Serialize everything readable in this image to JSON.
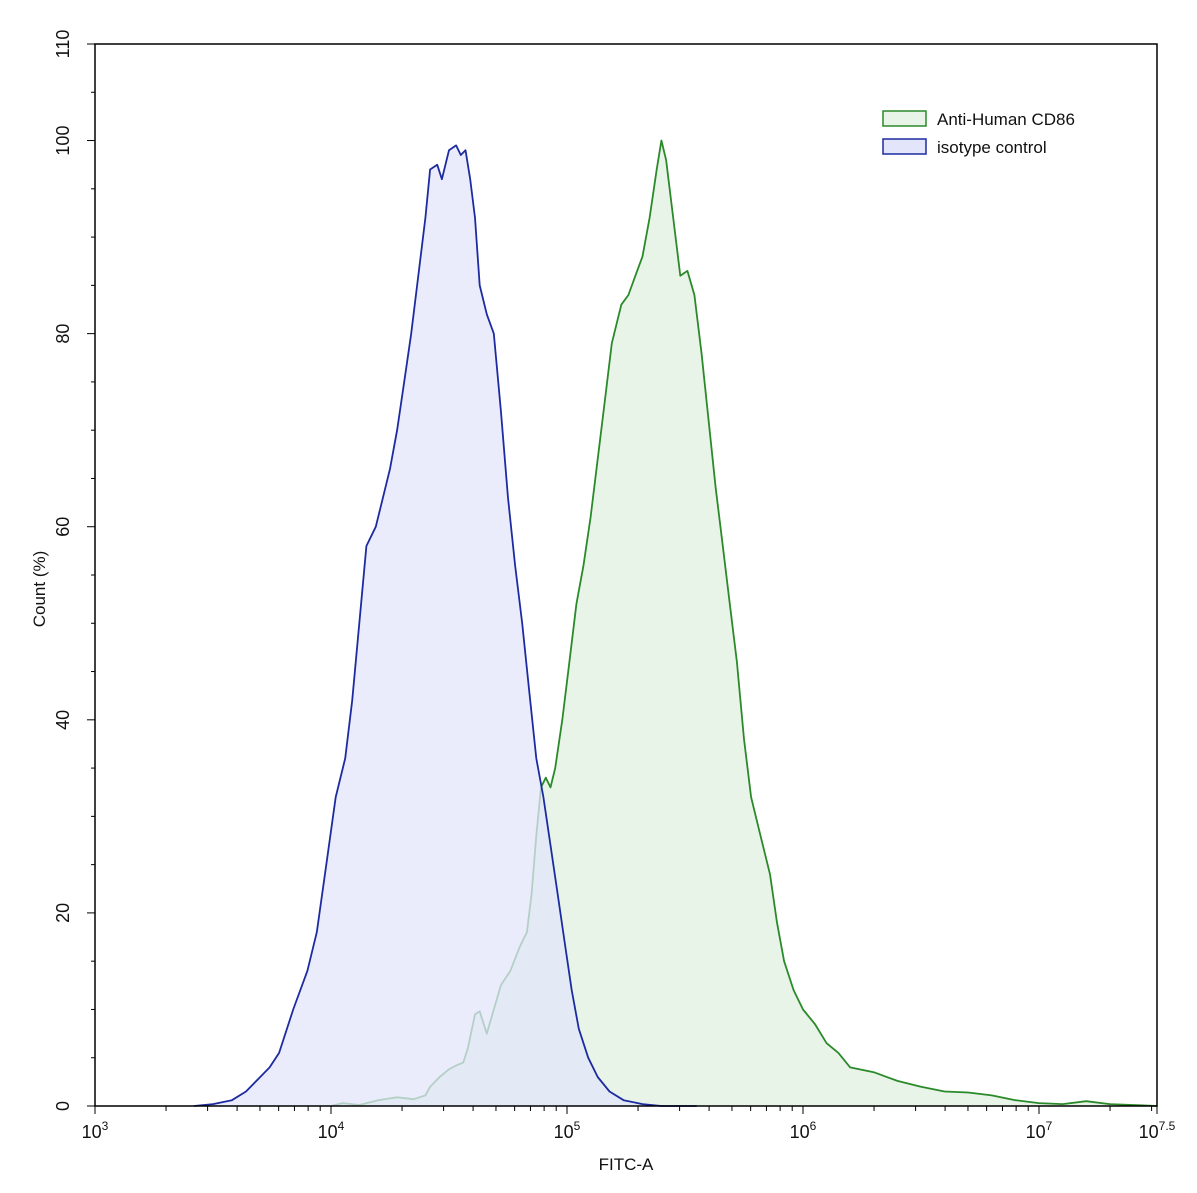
{
  "chart_data": {
    "type": "area",
    "xlabel": "FITC-A",
    "ylabel": "Count  (%)",
    "x_scale": "log10",
    "xlim": [
      3,
      7.5
    ],
    "ylim": [
      0,
      110
    ],
    "x_ticks": [
      {
        "base": "10",
        "exp": "3",
        "value": 3
      },
      {
        "base": "10",
        "exp": "4",
        "value": 4
      },
      {
        "base": "10",
        "exp": "5",
        "value": 5
      },
      {
        "base": "10",
        "exp": "6",
        "value": 6
      },
      {
        "base": "10",
        "exp": "7",
        "value": 7
      },
      {
        "base": "10",
        "exp": "7.5",
        "value": 7.5
      }
    ],
    "y_ticks": [
      "0",
      "20",
      "40",
      "60",
      "80",
      "100",
      "110"
    ],
    "legend_position": "top-right",
    "series": [
      {
        "name": "Anti-Human CD86",
        "color": "#2a8a2a",
        "fill": "#e7f4e7",
        "points": [
          [
            4.0,
            0
          ],
          [
            4.05,
            0.3
          ],
          [
            4.12,
            0.1
          ],
          [
            4.2,
            0.6
          ],
          [
            4.28,
            0.9
          ],
          [
            4.35,
            0.7
          ],
          [
            4.4,
            1.1
          ],
          [
            4.42,
            2
          ],
          [
            4.46,
            3
          ],
          [
            4.5,
            3.8
          ],
          [
            4.53,
            4.2
          ],
          [
            4.56,
            4.5
          ],
          [
            4.58,
            6
          ],
          [
            4.61,
            9.5
          ],
          [
            4.63,
            9.8
          ],
          [
            4.66,
            7.5
          ],
          [
            4.69,
            10
          ],
          [
            4.72,
            12.5
          ],
          [
            4.76,
            14
          ],
          [
            4.8,
            16.5
          ],
          [
            4.83,
            18
          ],
          [
            4.85,
            22
          ],
          [
            4.87,
            28
          ],
          [
            4.89,
            33
          ],
          [
            4.91,
            34
          ],
          [
            4.93,
            33
          ],
          [
            4.95,
            35
          ],
          [
            4.98,
            40
          ],
          [
            5.01,
            46
          ],
          [
            5.04,
            52
          ],
          [
            5.07,
            56
          ],
          [
            5.1,
            61
          ],
          [
            5.13,
            67
          ],
          [
            5.16,
            73
          ],
          [
            5.19,
            79
          ],
          [
            5.23,
            83
          ],
          [
            5.26,
            84
          ],
          [
            5.29,
            86
          ],
          [
            5.32,
            88
          ],
          [
            5.35,
            92
          ],
          [
            5.38,
            97
          ],
          [
            5.4,
            100
          ],
          [
            5.42,
            98
          ],
          [
            5.45,
            92
          ],
          [
            5.48,
            86
          ],
          [
            5.51,
            86.5
          ],
          [
            5.54,
            84
          ],
          [
            5.57,
            78
          ],
          [
            5.6,
            71
          ],
          [
            5.63,
            64
          ],
          [
            5.66,
            58
          ],
          [
            5.69,
            52
          ],
          [
            5.72,
            46
          ],
          [
            5.75,
            38
          ],
          [
            5.78,
            32
          ],
          [
            5.82,
            28
          ],
          [
            5.86,
            24
          ],
          [
            5.89,
            19
          ],
          [
            5.92,
            15
          ],
          [
            5.96,
            12
          ],
          [
            6.0,
            10
          ],
          [
            6.05,
            8.5
          ],
          [
            6.1,
            6.5
          ],
          [
            6.15,
            5.5
          ],
          [
            6.2,
            4
          ],
          [
            6.3,
            3.5
          ],
          [
            6.4,
            2.6
          ],
          [
            6.5,
            2
          ],
          [
            6.6,
            1.5
          ],
          [
            6.7,
            1.4
          ],
          [
            6.8,
            1.1
          ],
          [
            6.9,
            0.6
          ],
          [
            7.0,
            0.3
          ],
          [
            7.1,
            0.2
          ],
          [
            7.2,
            0.5
          ],
          [
            7.3,
            0.2
          ],
          [
            7.4,
            0.1
          ],
          [
            7.5,
            0
          ]
        ]
      },
      {
        "name": "isotype control",
        "color": "#1c2ba0",
        "fill": "#e3e5fb",
        "points": [
          [
            3.42,
            0
          ],
          [
            3.5,
            0.2
          ],
          [
            3.58,
            0.6
          ],
          [
            3.64,
            1.5
          ],
          [
            3.7,
            3
          ],
          [
            3.74,
            4
          ],
          [
            3.78,
            5.5
          ],
          [
            3.84,
            10
          ],
          [
            3.9,
            14
          ],
          [
            3.94,
            18
          ],
          [
            3.98,
            25
          ],
          [
            4.02,
            32
          ],
          [
            4.06,
            36
          ],
          [
            4.09,
            42
          ],
          [
            4.12,
            50
          ],
          [
            4.15,
            58
          ],
          [
            4.19,
            60
          ],
          [
            4.22,
            63
          ],
          [
            4.25,
            66
          ],
          [
            4.28,
            70
          ],
          [
            4.31,
            75
          ],
          [
            4.34,
            80
          ],
          [
            4.37,
            86
          ],
          [
            4.4,
            92
          ],
          [
            4.42,
            97
          ],
          [
            4.45,
            97.5
          ],
          [
            4.47,
            96
          ],
          [
            4.5,
            99
          ],
          [
            4.53,
            99.5
          ],
          [
            4.55,
            98.5
          ],
          [
            4.57,
            99
          ],
          [
            4.59,
            96
          ],
          [
            4.61,
            92
          ],
          [
            4.63,
            85
          ],
          [
            4.66,
            82
          ],
          [
            4.69,
            80
          ],
          [
            4.72,
            72
          ],
          [
            4.75,
            63
          ],
          [
            4.78,
            56
          ],
          [
            4.81,
            50
          ],
          [
            4.84,
            43
          ],
          [
            4.87,
            36
          ],
          [
            4.9,
            32
          ],
          [
            4.93,
            27
          ],
          [
            4.96,
            22
          ],
          [
            4.99,
            17
          ],
          [
            5.02,
            12
          ],
          [
            5.05,
            8
          ],
          [
            5.09,
            5
          ],
          [
            5.13,
            3
          ],
          [
            5.18,
            1.5
          ],
          [
            5.24,
            0.6
          ],
          [
            5.32,
            0.2
          ],
          [
            5.4,
            0
          ],
          [
            5.55,
            0
          ]
        ]
      }
    ]
  }
}
